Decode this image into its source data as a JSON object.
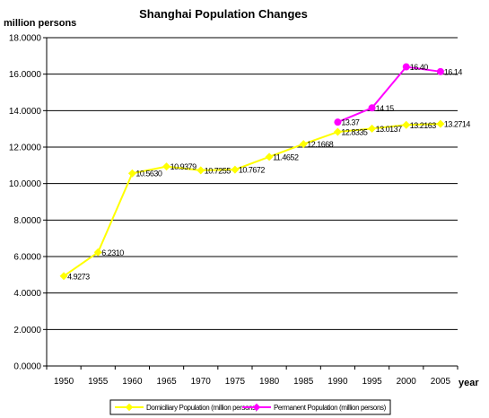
{
  "chart_data": {
    "type": "line",
    "title": "Shanghai Population Changes",
    "ylabel": "million persons",
    "xlabel": "year",
    "ylim": [
      0,
      18
    ],
    "y_ticks": [
      "0.0000",
      "2.0000",
      "4.0000",
      "6.0000",
      "8.0000",
      "10.0000",
      "12.0000",
      "14.0000",
      "16.0000",
      "18.0000"
    ],
    "x": [
      "1950",
      "1955",
      "1960",
      "1965",
      "1970",
      "1975",
      "1980",
      "1985",
      "1990",
      "1995",
      "2000",
      "2005"
    ],
    "grid": true,
    "legend_position": "bottom",
    "series": [
      {
        "name": "Domiciliary Population (million persons)",
        "color": "#ffff00",
        "values": [
          4.9273,
          6.231,
          10.563,
          10.9379,
          10.7255,
          10.7672,
          11.4652,
          12.1668,
          12.8335,
          13.0137,
          13.2163,
          13.2714
        ],
        "labels": [
          "4.9273",
          "6.2310",
          "10.5630",
          "10.9379",
          "10.7255",
          "10.7672",
          "11.4652",
          "12.1668",
          "12.8335",
          "13.0137",
          "13.2163",
          "13.2714"
        ]
      },
      {
        "name": "Permanent Population (million persons)",
        "color": "#ff00ff",
        "values": [
          null,
          null,
          null,
          null,
          null,
          null,
          null,
          null,
          13.37,
          14.15,
          16.4,
          16.14
        ],
        "labels": [
          null,
          null,
          null,
          null,
          null,
          null,
          null,
          null,
          "13.37",
          "14.15",
          "16.40",
          "16.14"
        ]
      }
    ]
  }
}
